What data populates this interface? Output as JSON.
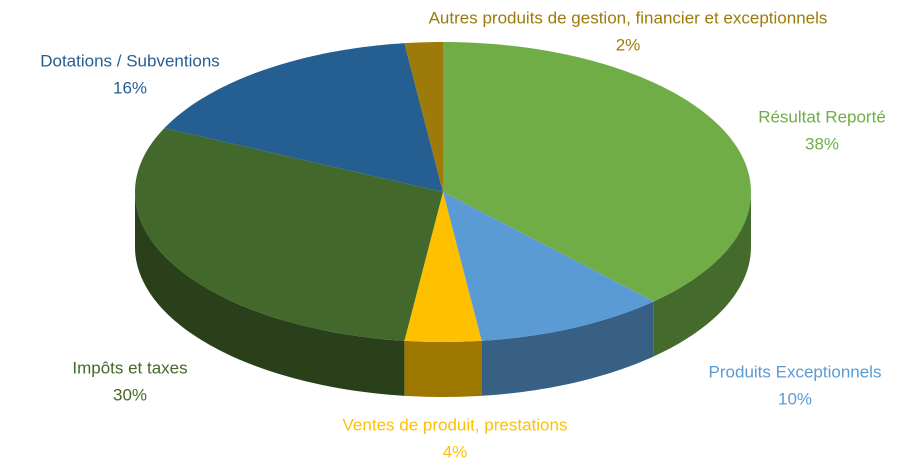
{
  "chart_data": {
    "type": "pie",
    "categories": [
      "Résultat Reporté",
      "Produits Exceptionnels",
      "Ventes de produit, prestations",
      "Impôts et taxes",
      "Dotations / Subventions",
      "Autres produits de gestion, financier et exceptionnels"
    ],
    "values": [
      38,
      10,
      4,
      30,
      16,
      2
    ],
    "value_labels": [
      "38%",
      "10%",
      "4%",
      "30%",
      "16%",
      "2%"
    ],
    "colors": [
      "#70ad47",
      "#5b9bd5",
      "#ffc000",
      "#43682b",
      "#255e91",
      "#9e7a0a"
    ]
  }
}
